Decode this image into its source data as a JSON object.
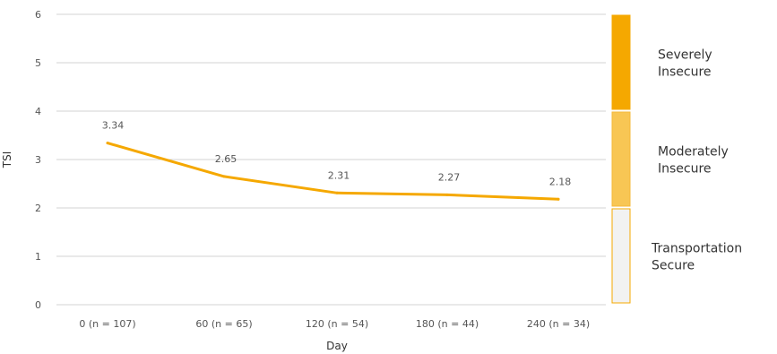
{
  "chart_data": {
    "type": "line",
    "title": "",
    "xlabel": "Day",
    "ylabel": "TSI",
    "ylim": [
      0,
      6
    ],
    "yticks": [
      "0",
      "1",
      "2",
      "3",
      "4",
      "5",
      "6"
    ],
    "categories": [
      "0 (n = 107)",
      "60 (n = 65)",
      "120 (n = 54)",
      "180 (n = 44)",
      "240 (n = 34)"
    ],
    "series": [
      {
        "values": [
          3.34,
          2.65,
          2.31,
          2.27,
          2.18
        ],
        "labels": [
          "3.34",
          "2.65",
          "2.31",
          "2.27",
          "2.18"
        ],
        "color": "#f5a800"
      }
    ],
    "grid": true,
    "bands": [
      {
        "label_lines": [
          "Severely",
          "Insecure"
        ],
        "from": 4,
        "to": 6,
        "color": "#f5a800",
        "border": "#f5a800"
      },
      {
        "label_lines": [
          "Moderately",
          "Insecure"
        ],
        "from": 2,
        "to": 4,
        "color": "#f8c654",
        "border": "#f5b83a"
      },
      {
        "label_lines": [
          "Transportation",
          "Secure"
        ],
        "from": 0,
        "to": 2,
        "color": "#f2f2f2",
        "border": "#f5a800"
      }
    ]
  }
}
